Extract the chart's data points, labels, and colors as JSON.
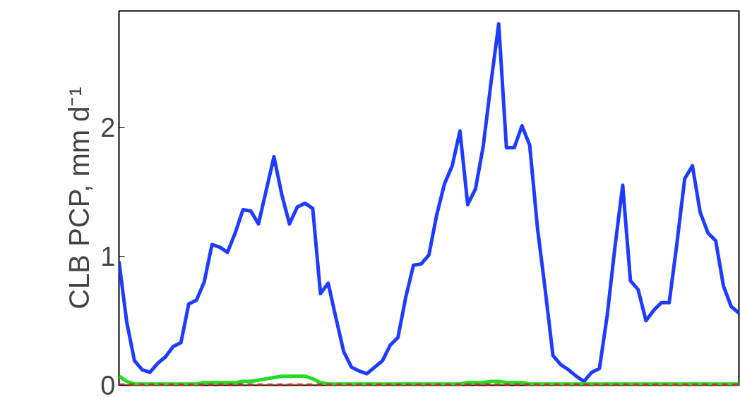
{
  "chart_data": {
    "type": "line",
    "ylabel": "CLB PCP, mm d⁻¹",
    "categories": [
      null,
      null,
      null,
      null,
      null,
      null,
      null,
      null,
      null,
      null,
      null,
      null,
      null,
      null,
      null,
      null,
      null,
      null,
      null,
      null,
      null,
      null,
      null,
      null,
      null,
      null,
      null,
      null,
      null,
      null,
      null,
      null,
      null,
      null,
      null,
      null,
      null,
      null,
      null,
      null,
      null,
      null,
      null,
      null,
      null,
      null,
      null,
      null,
      null,
      null,
      null,
      null,
      null,
      null,
      null,
      null,
      null,
      null,
      null,
      null,
      null,
      null,
      null,
      null,
      null,
      null,
      null,
      null,
      null,
      null,
      null,
      null,
      null,
      null,
      null,
      null,
      null,
      null,
      null,
      null,
      null
    ],
    "series": [
      {
        "color": "#1e3cff",
        "line_style": "solid",
        "values": [
          0.96,
          0.49,
          0.19,
          0.12,
          0.1,
          0.17,
          0.22,
          0.3,
          0.33,
          0.63,
          0.66,
          0.8,
          1.09,
          1.07,
          1.03,
          1.18,
          1.36,
          1.35,
          1.25,
          1.51,
          1.77,
          1.48,
          1.25,
          1.38,
          1.41,
          1.37,
          0.71,
          0.79,
          0.52,
          0.26,
          0.14,
          0.11,
          0.09,
          0.14,
          0.19,
          0.31,
          0.37,
          0.68,
          0.93,
          0.94,
          1.01,
          1.32,
          1.56,
          1.7,
          1.97,
          1.4,
          1.52,
          1.85,
          2.34,
          2.8,
          1.84,
          1.84,
          2.01,
          1.86,
          1.22,
          0.74,
          0.23,
          0.16,
          0.12,
          0.07,
          0.03,
          0.1,
          0.13,
          0.54,
          1.07,
          1.55,
          0.81,
          0.74,
          0.5,
          0.58,
          0.64,
          0.64,
          1.1,
          1.6,
          1.7,
          1.34,
          1.18,
          1.12,
          0.77,
          0.61,
          0.56
        ]
      },
      {
        "color": "#22dd22",
        "line_style": "solid",
        "values": [
          0.07,
          0.03,
          0.01,
          0.01,
          0.01,
          0.01,
          0.01,
          0.01,
          0.01,
          0.01,
          0.01,
          0.02,
          0.02,
          0.02,
          0.02,
          0.02,
          0.03,
          0.03,
          0.04,
          0.05,
          0.06,
          0.07,
          0.07,
          0.07,
          0.07,
          0.05,
          0.02,
          0.01,
          0.01,
          0.01,
          0.01,
          0.01,
          0.01,
          0.01,
          0.01,
          0.01,
          0.01,
          0.01,
          0.01,
          0.01,
          0.01,
          0.01,
          0.01,
          0.01,
          0.01,
          0.02,
          0.02,
          0.02,
          0.03,
          0.03,
          0.02,
          0.02,
          0.02,
          0.01,
          0.01,
          0.01,
          0.01,
          0.01,
          0.01,
          0.01,
          0.01,
          0.01,
          0.01,
          0.01,
          0.01,
          0.01,
          0.01,
          0.01,
          0.01,
          0.01,
          0.01,
          0.01,
          0.01,
          0.01,
          0.01,
          0.01,
          0.01,
          0.01,
          0.01,
          0.01,
          0.01
        ]
      },
      {
        "color": "#ee2211",
        "line_style": "dashed",
        "values": [
          0,
          0,
          0,
          0,
          0,
          0,
          0,
          0,
          0,
          0,
          0,
          0,
          0,
          0,
          0,
          0,
          0,
          0,
          0,
          0,
          0,
          0,
          0,
          0,
          0,
          0,
          0,
          0,
          0,
          0,
          0,
          0,
          0,
          0,
          0,
          0,
          0,
          0,
          0,
          0,
          0,
          0,
          0,
          0,
          0,
          0,
          0,
          0,
          0,
          0,
          0,
          0,
          0,
          0,
          0,
          0,
          0,
          0,
          0,
          0,
          0,
          0,
          0,
          0,
          0,
          0,
          0,
          0,
          0,
          0,
          0,
          0,
          0,
          0,
          0,
          0,
          0,
          0,
          0,
          0,
          0
        ]
      }
    ],
    "ylim": [
      0,
      2.9
    ],
    "yticks": [
      0,
      1,
      2
    ],
    "grid": false
  }
}
